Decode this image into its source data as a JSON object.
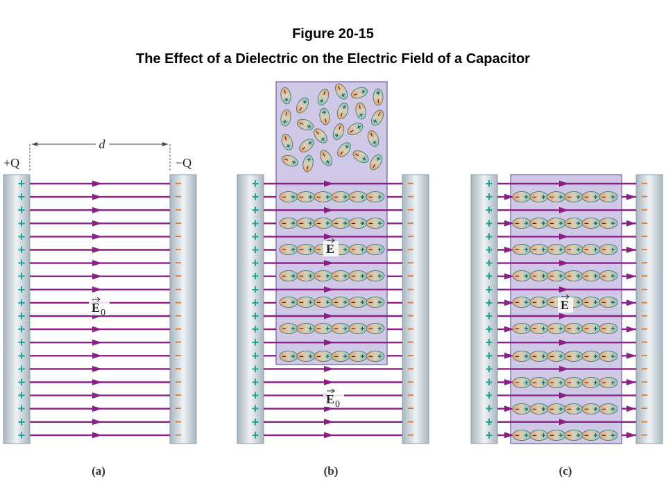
{
  "figure": {
    "number": "Figure 20-15",
    "title": "The Effect of a Dielectric on the Electric Field of a Capacitor"
  },
  "panel_a": {
    "label": "(a)",
    "plus_charge": "+Q",
    "minus_charge": "−Q",
    "distance": "d",
    "field_symbol": "E",
    "field_subscript": "0"
  },
  "panel_b": {
    "label": "(b)",
    "field_inside": "E",
    "field_outside": "E",
    "field_outside_subscript": "0"
  },
  "panel_c": {
    "label": "(c)",
    "field_inside": "E"
  },
  "plate_plus_sign": "+",
  "plate_minus_sign": "−",
  "dipole_plus": "+",
  "dipole_minus": "−",
  "colors": {
    "plate": "#b8c4cc",
    "plate_highlight": "#e6ecf0",
    "plus": "#1aa39a",
    "field_line": "#8a1f86",
    "dielectric": "#cbc3e3",
    "dielectric_border": "#6f5a9c",
    "dipole_warm": "#f2a36c",
    "dipole_cool": "#8fc6c0"
  }
}
